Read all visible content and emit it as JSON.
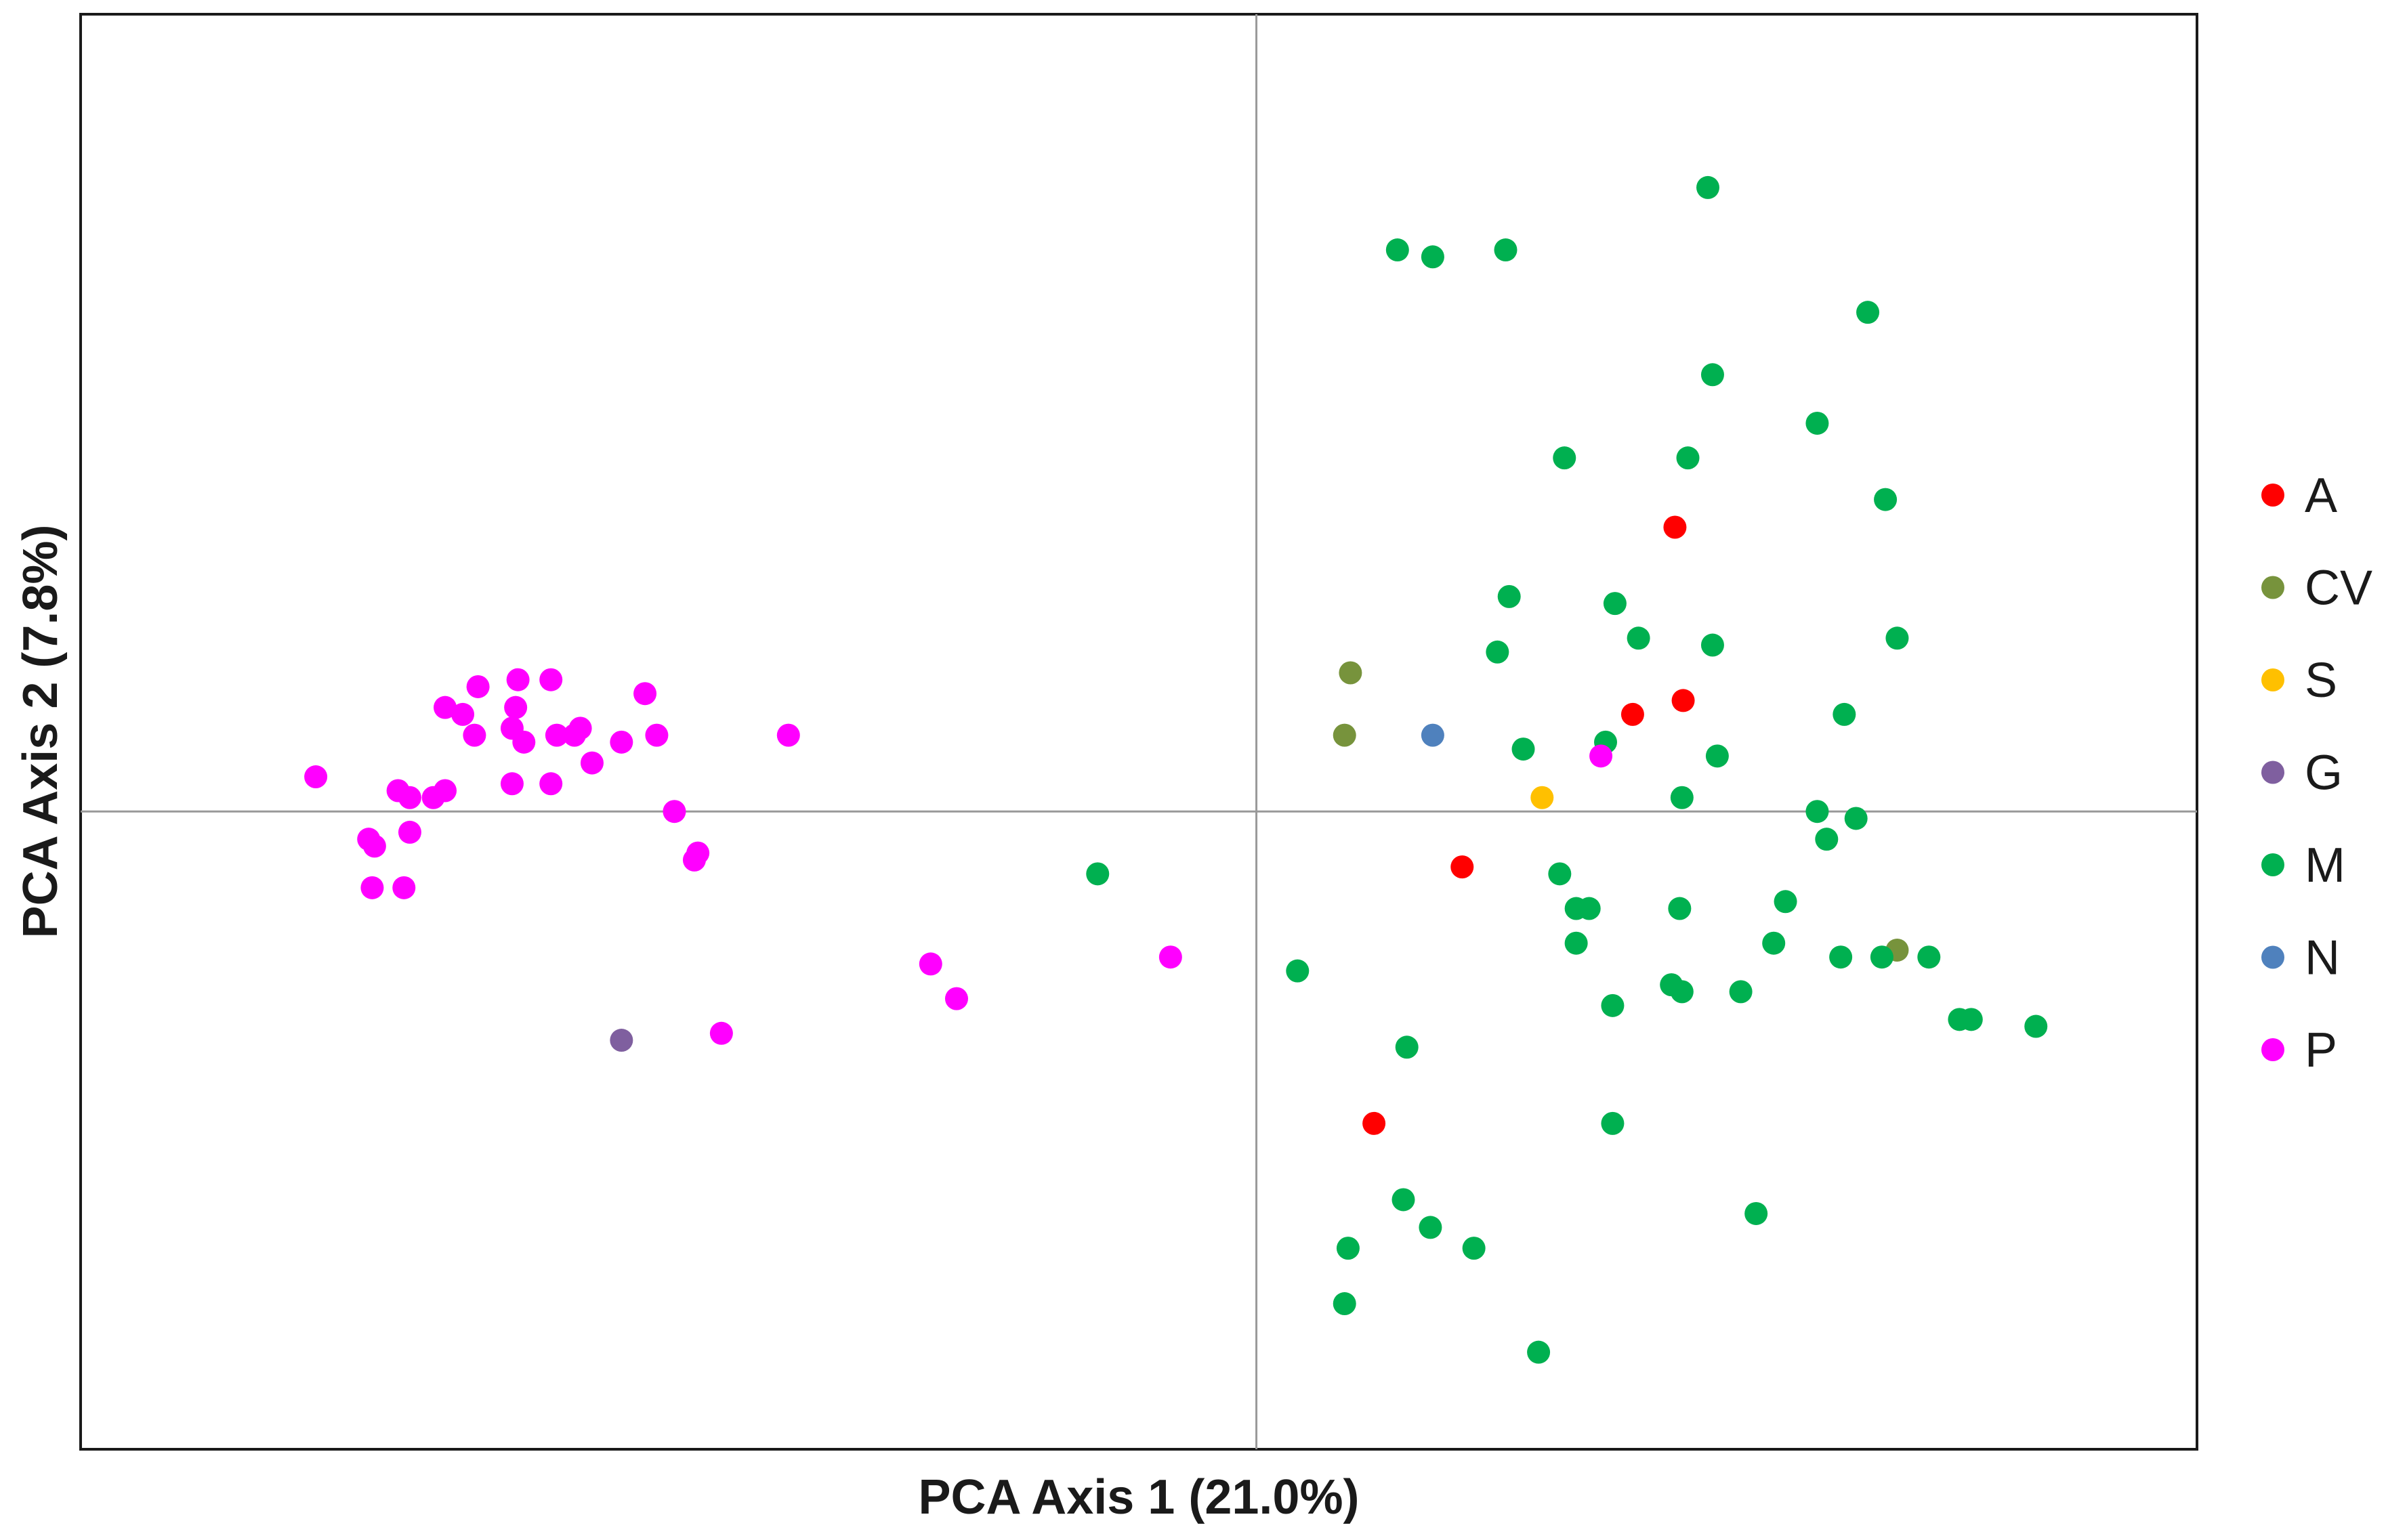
{
  "chart_data": {
    "type": "scatter",
    "title": "",
    "xlabel": "PCA Axis 1 (21.0%)",
    "ylabel": "PCA Axis 2 (7.8%)",
    "xlim": [
      -1.0,
      0.8
    ],
    "ylim": [
      -0.92,
      1.15
    ],
    "grid": false,
    "zero_lines": true,
    "tick_labels": false,
    "legend_position": "right",
    "series": [
      {
        "name": "A",
        "color": "#ff0000",
        "points": [
          [
            0.356,
            0.41
          ],
          [
            0.363,
            0.16
          ],
          [
            0.32,
            0.14
          ],
          [
            0.175,
            -0.08
          ],
          [
            0.1,
            -0.45
          ]
        ]
      },
      {
        "name": "CV",
        "color": "#77933c",
        "points": [
          [
            0.08,
            0.2
          ],
          [
            0.075,
            0.11
          ],
          [
            0.545,
            -0.2
          ]
        ]
      },
      {
        "name": "S",
        "color": "#ffc000",
        "points": [
          [
            0.243,
            0.02
          ]
        ]
      },
      {
        "name": "G",
        "color": "#7f5f9f",
        "points": [
          [
            -0.54,
            -0.33
          ]
        ]
      },
      {
        "name": "M",
        "color": "#00b050",
        "points": [
          [
            0.384,
            0.9
          ],
          [
            0.12,
            0.81
          ],
          [
            0.15,
            0.8
          ],
          [
            0.212,
            0.81
          ],
          [
            0.52,
            0.72
          ],
          [
            0.388,
            0.63
          ],
          [
            0.477,
            0.56
          ],
          [
            0.262,
            0.51
          ],
          [
            0.367,
            0.51
          ],
          [
            0.535,
            0.45
          ],
          [
            0.215,
            0.31
          ],
          [
            0.305,
            0.3
          ],
          [
            0.325,
            0.25
          ],
          [
            0.388,
            0.24
          ],
          [
            0.545,
            0.25
          ],
          [
            0.205,
            0.23
          ],
          [
            0.5,
            0.14
          ],
          [
            0.227,
            0.09
          ],
          [
            0.297,
            0.1
          ],
          [
            0.392,
            0.08
          ],
          [
            0.362,
            0.02
          ],
          [
            0.477,
            0.0
          ],
          [
            0.51,
            -0.01
          ],
          [
            0.485,
            -0.04
          ],
          [
            -0.135,
            -0.09
          ],
          [
            0.258,
            -0.09
          ],
          [
            0.272,
            -0.14
          ],
          [
            0.283,
            -0.14
          ],
          [
            0.36,
            -0.14
          ],
          [
            0.45,
            -0.13
          ],
          [
            0.272,
            -0.19
          ],
          [
            0.44,
            -0.19
          ],
          [
            0.497,
            -0.21
          ],
          [
            0.532,
            -0.21
          ],
          [
            0.572,
            -0.21
          ],
          [
            0.035,
            -0.23
          ],
          [
            0.353,
            -0.25
          ],
          [
            0.362,
            -0.26
          ],
          [
            0.412,
            -0.26
          ],
          [
            0.303,
            -0.28
          ],
          [
            0.598,
            -0.3
          ],
          [
            0.608,
            -0.3
          ],
          [
            0.663,
            -0.31
          ],
          [
            0.128,
            -0.34
          ],
          [
            0.303,
            -0.45
          ],
          [
            0.125,
            -0.56
          ],
          [
            0.148,
            -0.6
          ],
          [
            0.425,
            -0.58
          ],
          [
            0.185,
            -0.63
          ],
          [
            0.078,
            -0.63
          ],
          [
            0.075,
            -0.71
          ],
          [
            0.24,
            -0.78
          ]
        ]
      },
      {
        "name": "N",
        "color": "#4f81bd",
        "points": [
          [
            0.15,
            0.11
          ]
        ]
      },
      {
        "name": "P",
        "color": "#ff00ff",
        "points": [
          [
            -0.8,
            0.05
          ],
          [
            -0.69,
            0.15
          ],
          [
            -0.675,
            0.14
          ],
          [
            -0.662,
            0.18
          ],
          [
            -0.628,
            0.19
          ],
          [
            -0.63,
            0.15
          ],
          [
            -0.6,
            0.19
          ],
          [
            -0.58,
            0.11
          ],
          [
            -0.575,
            0.12
          ],
          [
            -0.52,
            0.17
          ],
          [
            -0.54,
            0.1
          ],
          [
            -0.51,
            0.11
          ],
          [
            -0.565,
            0.07
          ],
          [
            -0.595,
            0.11
          ],
          [
            -0.633,
            0.12
          ],
          [
            -0.623,
            0.1
          ],
          [
            -0.665,
            0.11
          ],
          [
            -0.72,
            0.02
          ],
          [
            -0.73,
            0.03
          ],
          [
            -0.69,
            0.03
          ],
          [
            -0.7,
            0.02
          ],
          [
            -0.6,
            0.04
          ],
          [
            -0.633,
            0.04
          ],
          [
            -0.72,
            -0.03
          ],
          [
            -0.755,
            -0.04
          ],
          [
            -0.75,
            -0.05
          ],
          [
            -0.725,
            -0.11
          ],
          [
            -0.752,
            -0.11
          ],
          [
            -0.495,
            0.0
          ],
          [
            -0.475,
            -0.06
          ],
          [
            -0.478,
            -0.07
          ],
          [
            -0.398,
            0.11
          ],
          [
            -0.455,
            -0.32
          ],
          [
            -0.277,
            -0.22
          ],
          [
            -0.255,
            -0.27
          ],
          [
            -0.073,
            -0.21
          ],
          [
            0.293,
            0.08
          ]
        ]
      }
    ]
  }
}
